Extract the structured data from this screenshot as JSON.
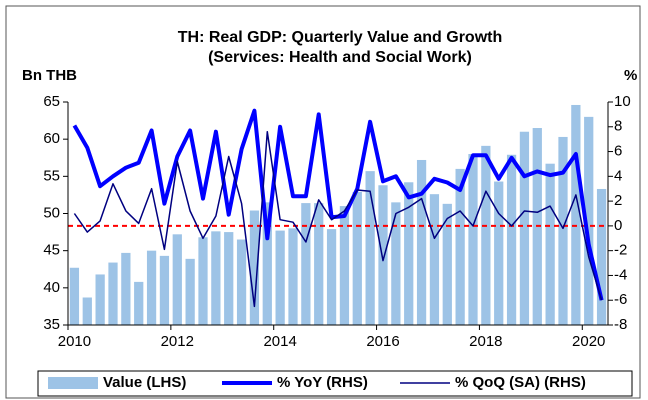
{
  "chart_data": {
    "type": "combo",
    "title": "TH: Real GDP: Quarterly Value and Growth",
    "subtitle": "(Services: Health and Social Work)",
    "ylabel": "Bn THB",
    "y2label": "%",
    "categories": [
      "2010",
      null,
      null,
      null,
      null,
      null,
      null,
      null,
      "2012",
      null,
      null,
      null,
      null,
      null,
      null,
      null,
      "2014",
      null,
      null,
      null,
      null,
      null,
      null,
      null,
      "2016",
      null,
      null,
      null,
      null,
      null,
      null,
      null,
      "2018",
      null,
      null,
      null,
      null,
      null,
      null,
      null,
      "2020",
      null
    ],
    "series": [
      {
        "name": "Value (LHS)",
        "type": "bar",
        "axis": "y",
        "color": "#9dc3e6",
        "values": [
          42.7,
          38.7,
          41.8,
          43.4,
          44.7,
          40.8,
          45.0,
          44.3,
          47.2,
          43.9,
          46.8,
          47.6,
          47.5,
          46.5,
          50.4,
          51.5,
          47.7,
          48.0,
          51.4,
          51.4,
          47.9,
          51.0,
          52.9,
          55.7,
          53.8,
          51.5,
          54.2,
          57.2,
          52.6,
          51.3,
          56.0,
          58.0,
          59.1,
          54.3,
          57.9,
          61.0,
          61.5,
          56.7,
          60.3,
          64.6,
          63.0,
          53.3
        ]
      },
      {
        "name": "% YoY (RHS)",
        "type": "line",
        "axis": "y2",
        "color": "#0000ff",
        "width": 4,
        "values": [
          8.1,
          6.3,
          3.2,
          4.0,
          4.7,
          5.1,
          7.7,
          1.8,
          5.6,
          7.7,
          2.2,
          7.6,
          0.9,
          6.2,
          9.3,
          -1.0,
          8.0,
          2.4,
          2.4,
          9.0,
          0.7,
          0.8,
          3.0,
          8.4,
          3.6,
          4.0,
          2.3,
          2.6,
          3.8,
          3.5,
          2.9,
          5.7,
          5.7,
          3.8,
          5.5,
          4.0,
          4.4,
          4.1,
          4.3,
          5.8,
          -1.5,
          -6.0
        ]
      },
      {
        "name": "% QoQ (SA) (RHS)",
        "type": "line",
        "axis": "y2",
        "color": "#000080",
        "width": 1.5,
        "values": [
          1.0,
          -0.5,
          0.4,
          3.4,
          1.2,
          0.2,
          3.0,
          -1.9,
          5.2,
          1.2,
          -1.0,
          0.8,
          5.6,
          1.8,
          -6.5,
          7.6,
          0.5,
          0.3,
          -1.3,
          2.1,
          0.5,
          1.2,
          2.9,
          2.8,
          -2.8,
          1.0,
          1.5,
          2.2,
          -1.0,
          0.6,
          1.2,
          0.0,
          2.8,
          1.0,
          0.0,
          1.2,
          1.1,
          1.6,
          -0.2,
          2.5,
          -2.5,
          -6.0
        ]
      }
    ],
    "reference_line": {
      "axis": "y2",
      "value": 0,
      "color": "#ff0000",
      "dashed": true
    },
    "ylim": [
      35,
      65
    ],
    "yticks": [
      35,
      40,
      45,
      50,
      55,
      60,
      65
    ],
    "y2lim": [
      -8,
      10
    ],
    "y2ticks": [
      -8,
      -6,
      -4,
      -2,
      0,
      2,
      4,
      6,
      8,
      10
    ],
    "legend": "bottom"
  }
}
